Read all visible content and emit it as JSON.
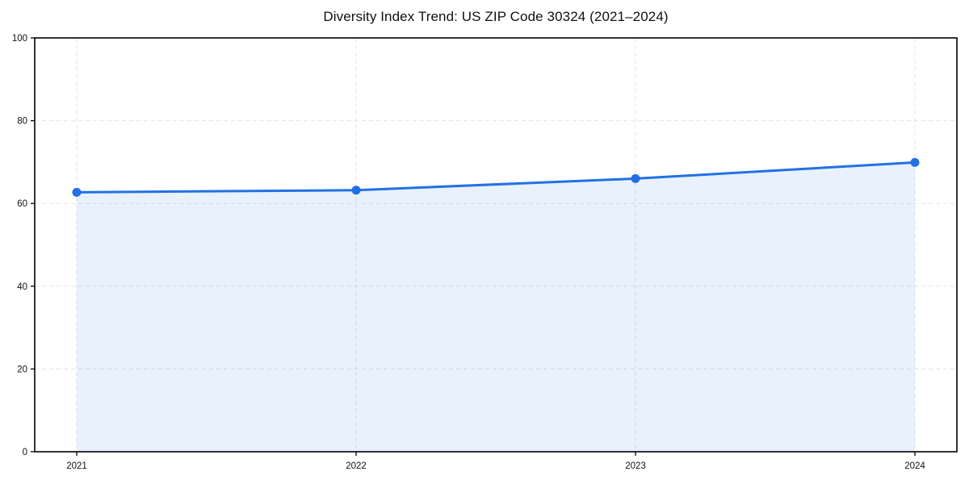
{
  "chart_data": {
    "type": "line",
    "title": "Diversity Index Trend: US ZIP Code 30324 (2021–2024)",
    "xlabel": "",
    "ylabel": "",
    "x": [
      "2021",
      "2022",
      "2023",
      "2024"
    ],
    "series": [
      {
        "name": "Diversity Index",
        "values": [
          62.7,
          63.2,
          66.0,
          69.9
        ]
      }
    ],
    "ylim": [
      0,
      100
    ],
    "yticks": [
      0,
      20,
      40,
      60,
      80,
      100
    ],
    "grid": "dashed, both axes",
    "legend_position": "none",
    "marker": "circle",
    "area_fill": "under line to 0",
    "colors": {
      "line": "#2271e3",
      "marker": "#2271e3",
      "area_fill": "#2271e3",
      "area_fill_opacity": 0.1,
      "gridline": "#e4e4e4",
      "axis_frame": "#000000",
      "text": "#111111",
      "background": "#ffffff"
    }
  }
}
